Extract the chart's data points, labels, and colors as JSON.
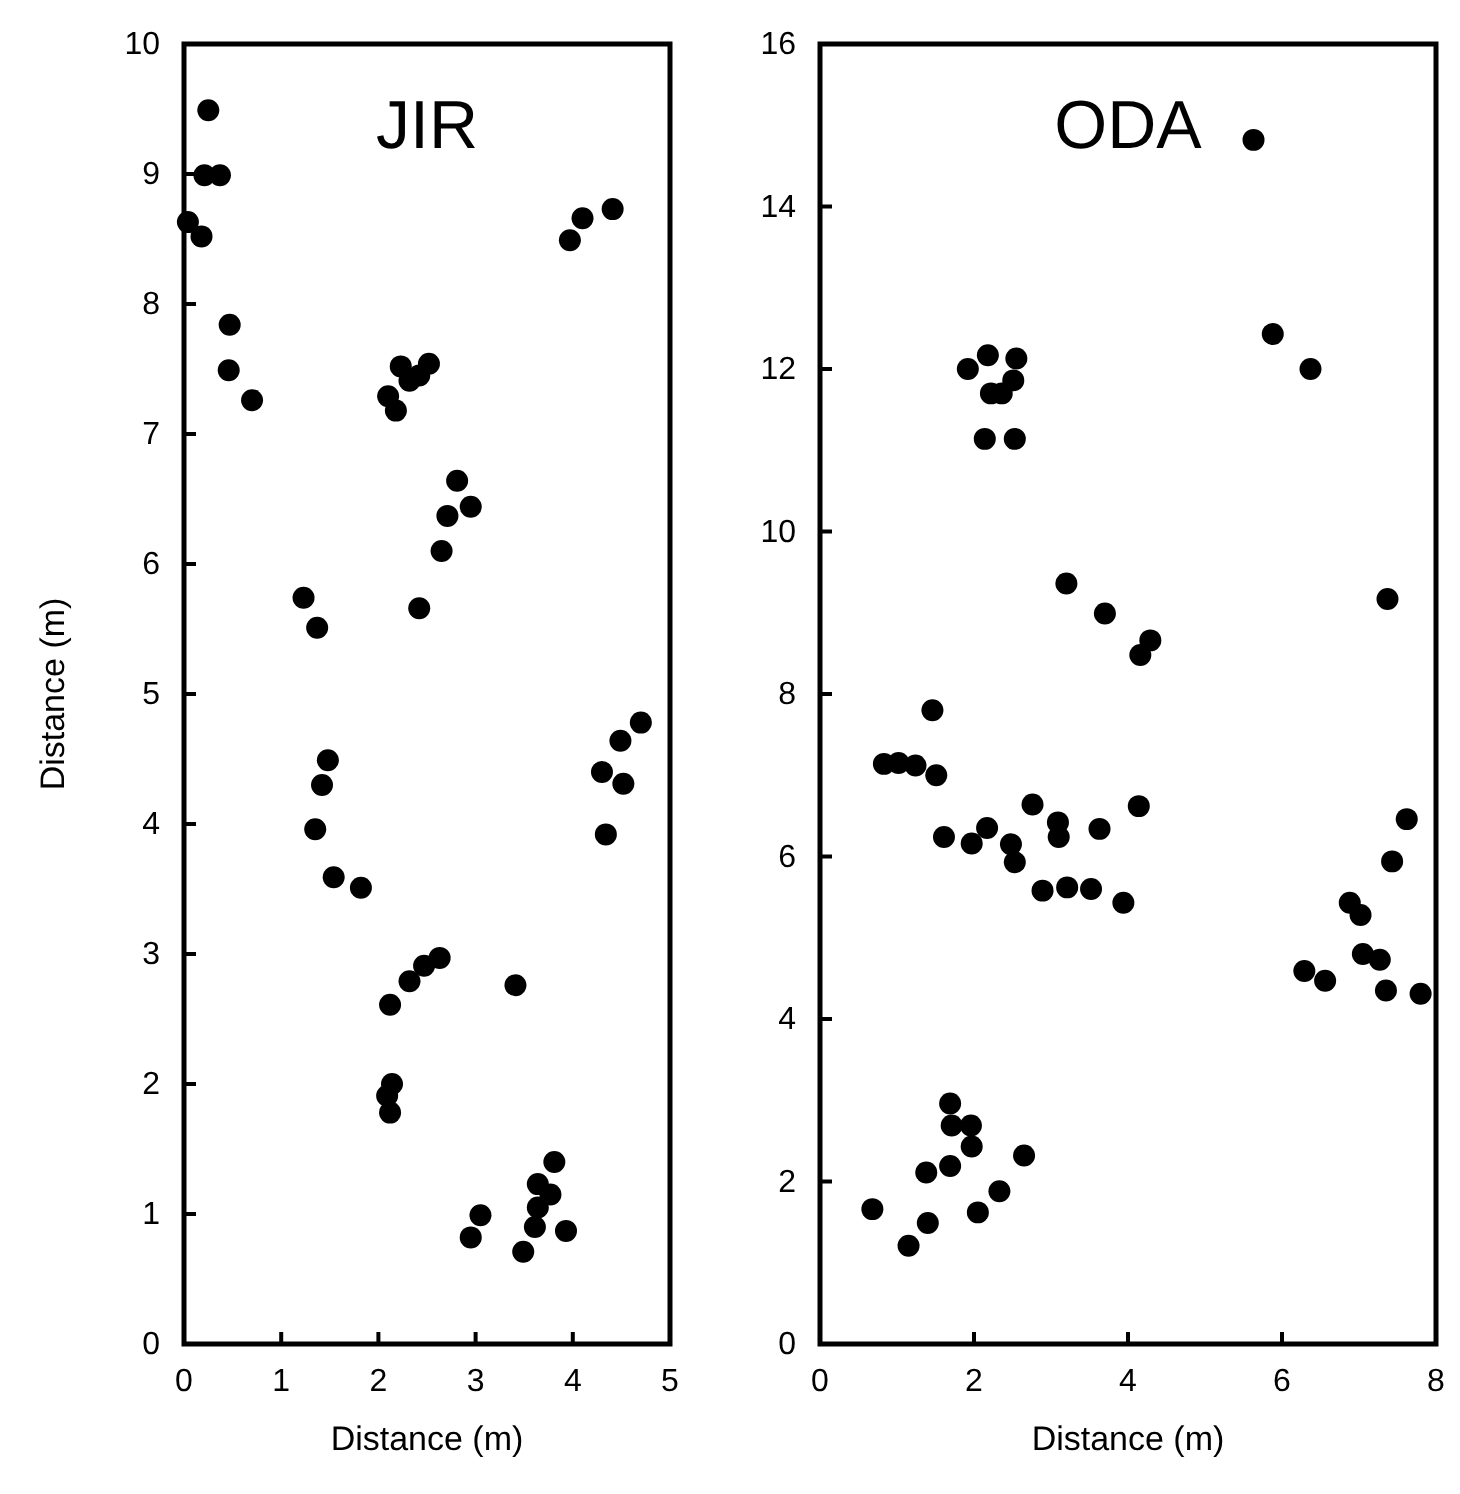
{
  "chart_data": [
    {
      "type": "scatter",
      "title": "JIR",
      "xlabel": "Distance (m)",
      "ylabel": "Distance (m)",
      "marker": "circle",
      "xlim": [
        0,
        5
      ],
      "ylim": [
        0,
        10
      ],
      "xticks": [
        0,
        1,
        2,
        3,
        4,
        5
      ],
      "yticks": [
        0,
        1,
        2,
        3,
        4,
        5,
        6,
        7,
        8,
        9,
        10
      ],
      "series": [
        {
          "color": "#000000",
          "x": [
            0.25,
            0.21,
            0.37,
            0.04,
            0.18,
            0.47,
            0.46,
            0.7,
            2.1,
            2.18,
            2.23,
            2.32,
            2.42,
            2.52,
            2.81,
            2.95,
            2.71,
            2.65,
            2.42,
            1.23,
            1.37,
            3.97,
            4.1,
            4.41,
            1.48,
            1.42,
            1.35,
            1.54,
            1.82,
            4.3,
            4.49,
            4.7,
            4.52,
            4.34,
            2.12,
            2.32,
            2.47,
            2.63,
            3.41,
            2.14,
            2.09,
            2.12,
            2.95,
            3.05,
            3.49,
            3.61,
            3.64,
            3.64,
            3.77,
            3.81,
            3.93
          ],
          "values": [
            9.49,
            8.99,
            8.99,
            8.63,
            8.52,
            7.84,
            7.49,
            7.26,
            7.29,
            7.18,
            7.52,
            7.41,
            7.45,
            7.54,
            6.64,
            6.44,
            6.37,
            6.1,
            5.66,
            5.74,
            5.51,
            8.49,
            8.66,
            8.73,
            4.49,
            4.3,
            3.96,
            3.59,
            3.51,
            4.4,
            4.64,
            4.78,
            4.31,
            3.92,
            2.61,
            2.79,
            2.91,
            2.97,
            2.76,
            2.0,
            1.91,
            1.78,
            0.82,
            0.99,
            0.71,
            0.9,
            1.05,
            1.23,
            1.15,
            1.4,
            0.87
          ]
        }
      ]
    },
    {
      "type": "scatter",
      "title": "ODA",
      "xlabel": "Distance (m)",
      "marker": "circle",
      "xlim": [
        0,
        8
      ],
      "ylim": [
        0,
        16
      ],
      "xticks": [
        0,
        2,
        4,
        6,
        8
      ],
      "yticks": [
        0,
        2,
        4,
        6,
        8,
        10,
        12,
        14,
        16
      ],
      "series": [
        {
          "color": "#000000",
          "x": [
            5.63,
            5.88,
            6.37,
            7.37,
            1.92,
            2.18,
            2.55,
            2.51,
            2.22,
            2.36,
            2.14,
            2.53,
            3.2,
            3.7,
            4.16,
            4.29,
            0.68,
            1.15,
            1.4,
            1.38,
            1.69,
            1.69,
            1.71,
            1.96,
            1.97,
            2.05,
            2.33,
            2.65,
            0.83,
            1.02,
            1.24,
            1.51,
            1.46,
            1.61,
            1.97,
            2.17,
            2.48,
            2.53,
            2.76,
            2.89,
            3.09,
            3.1,
            3.21,
            3.52,
            3.63,
            3.94,
            4.14,
            6.29,
            6.56,
            6.88,
            7.02,
            7.05,
            7.27,
            7.35,
            7.43,
            7.62,
            7.8
          ],
          "values": [
            14.82,
            12.43,
            12.0,
            9.17,
            12.0,
            12.17,
            12.13,
            11.86,
            11.7,
            11.7,
            11.14,
            11.14,
            9.36,
            8.99,
            8.48,
            8.66,
            1.66,
            1.21,
            1.49,
            2.11,
            2.19,
            2.96,
            2.69,
            2.69,
            2.43,
            1.62,
            1.88,
            2.32,
            7.14,
            7.15,
            7.12,
            7.0,
            7.8,
            6.24,
            6.16,
            6.35,
            6.15,
            5.93,
            6.64,
            5.58,
            6.42,
            6.24,
            5.62,
            5.6,
            6.34,
            5.43,
            6.62,
            4.59,
            4.47,
            5.43,
            5.28,
            4.8,
            4.73,
            4.35,
            5.94,
            6.46,
            4.31
          ]
        }
      ]
    }
  ]
}
